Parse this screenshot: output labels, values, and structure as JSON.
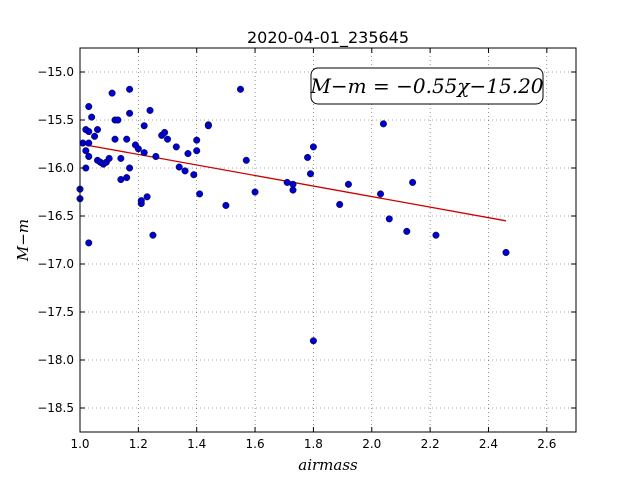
{
  "chart_data": {
    "type": "scatter",
    "title": "2020-04-01_235645",
    "xlabel": "airmass",
    "ylabel": "M−m",
    "xlim": [
      1.0,
      2.7
    ],
    "ylim": [
      -18.75,
      -14.75
    ],
    "xticks": [
      1.0,
      1.2,
      1.4,
      1.6,
      1.8,
      2.0,
      2.2,
      2.4,
      2.6
    ],
    "xtick_labels": [
      "1.0",
      "1.2",
      "1.4",
      "1.6",
      "1.8",
      "2.0",
      "2.2",
      "2.4",
      "2.6"
    ],
    "yticks": [
      -15.0,
      -15.5,
      -16.0,
      -16.5,
      -17.0,
      -17.5,
      -18.0,
      -18.5
    ],
    "ytick_labels": [
      "−15.0",
      "−15.5",
      "−16.0",
      "−16.5",
      "−17.0",
      "−17.5",
      "−18.0",
      "−18.5"
    ],
    "grid": true,
    "annotation": "M−m = −0.55χ−15.20",
    "colors": {
      "points": "#0000cc",
      "fit": "#cc0000",
      "axes": "#000000"
    },
    "series": [
      {
        "kind": "scatter",
        "x": [
          1.0,
          1.0,
          1.01,
          1.02,
          1.02,
          1.03,
          1.02,
          1.03,
          1.03,
          1.03,
          1.03,
          1.04,
          1.05,
          1.06,
          1.06,
          1.07,
          1.08,
          1.09,
          1.1,
          1.11,
          1.12,
          1.12,
          1.13,
          1.14,
          1.14,
          1.16,
          1.16,
          1.17,
          1.17,
          1.17,
          1.19,
          1.2,
          1.21,
          1.21,
          1.22,
          1.22,
          1.23,
          1.24,
          1.25,
          1.26,
          1.28,
          1.29,
          1.3,
          1.33,
          1.34,
          1.36,
          1.37,
          1.39,
          1.4,
          1.4,
          1.41,
          1.44,
          1.44,
          1.5,
          1.55,
          1.57,
          1.6,
          1.71,
          1.73,
          1.73,
          1.78,
          1.79,
          1.8,
          1.8,
          1.89,
          1.92,
          2.03,
          2.04,
          2.06,
          2.12,
          2.14,
          2.22,
          2.46
        ],
        "y": [
          -16.22,
          -16.32,
          -15.74,
          -15.82,
          -16.0,
          -16.78,
          -15.6,
          -15.36,
          -15.62,
          -15.74,
          -15.88,
          -15.47,
          -15.67,
          -15.6,
          -15.92,
          -15.94,
          -15.96,
          -15.94,
          -15.9,
          -15.22,
          -15.5,
          -15.7,
          -15.5,
          -16.12,
          -15.9,
          -15.7,
          -16.1,
          -16.0,
          -15.18,
          -15.43,
          -15.76,
          -15.8,
          -16.37,
          -16.34,
          -15.56,
          -15.84,
          -16.3,
          -15.4,
          -16.7,
          -15.88,
          -15.66,
          -15.63,
          -15.7,
          -15.78,
          -15.99,
          -16.03,
          -15.85,
          -16.07,
          -15.71,
          -15.82,
          -16.27,
          -15.55,
          -15.56,
          -16.39,
          -15.18,
          -15.92,
          -16.25,
          -16.15,
          -16.23,
          -16.17,
          -15.89,
          -16.06,
          -15.78,
          -17.8,
          -16.38,
          -16.17,
          -16.27,
          -15.54,
          -16.53,
          -16.66,
          -16.15,
          -16.7,
          -16.88
        ]
      },
      {
        "kind": "fit-line",
        "x": [
          1.02,
          2.46
        ],
        "y": [
          -15.76,
          -16.55
        ]
      }
    ]
  }
}
